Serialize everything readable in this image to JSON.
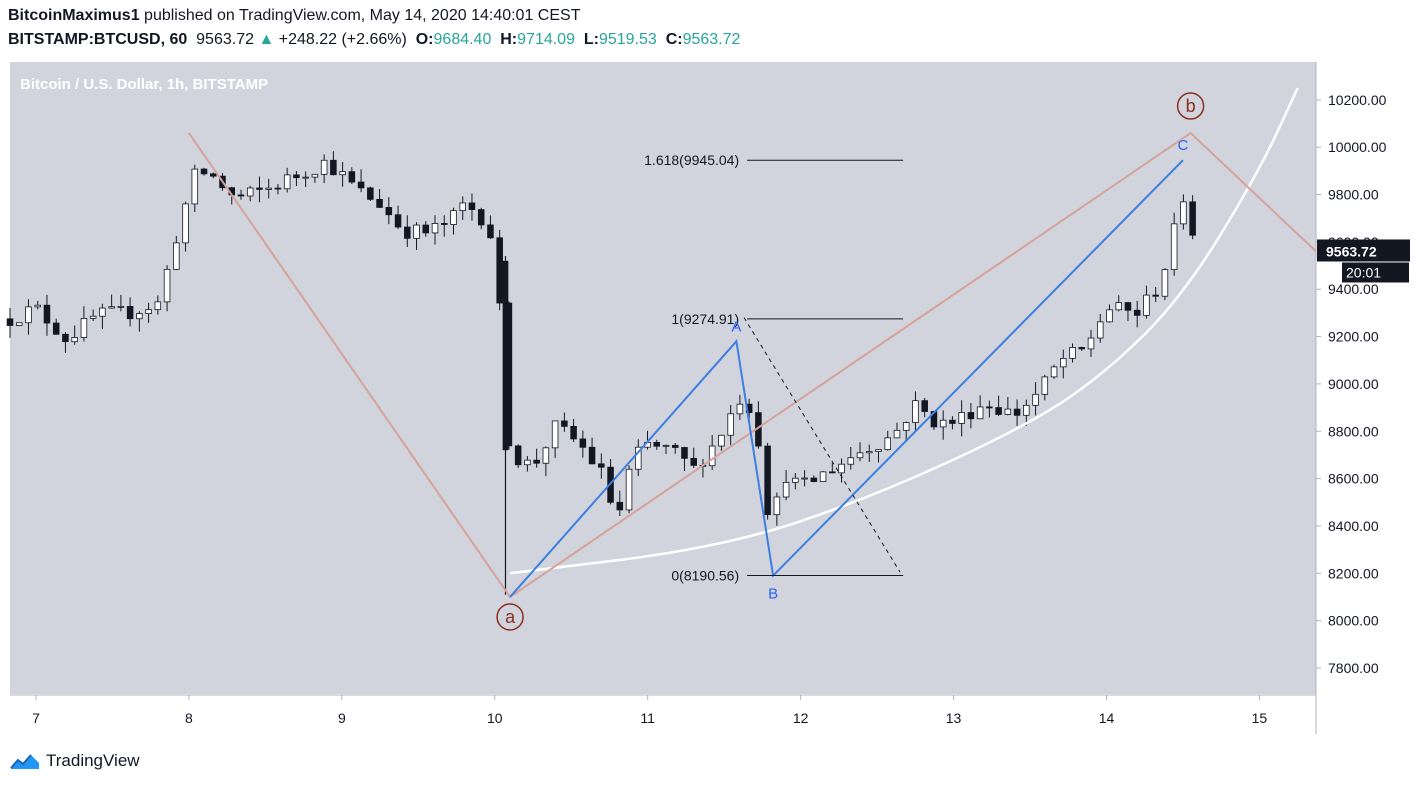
{
  "header": {
    "author": "BitcoinMaximus1",
    "published_text": "published on TradingView.com, May 14, 2020 14:40:01 CEST",
    "symbol": "BITSTAMP:BTCUSD, 60",
    "last": "9563.72",
    "change_arrow": "▲",
    "change": "+248.22 (+2.66%)",
    "open_label": "O:",
    "open": "9684.40",
    "high_label": "H:",
    "high": "9714.09",
    "low_label": "L:",
    "low": "9519.53",
    "close_label": "C:",
    "close": "9563.72"
  },
  "footer": {
    "brand": "TradingView",
    "logo_icon": "tradingview-logo-icon"
  },
  "colors": {
    "background": "#d1d4dc",
    "wave_brown": "#d4a39a",
    "wave_blue": "#3d7fe0",
    "channel_white": "#ffffff",
    "label_red": "#8b2e1f",
    "label_blue": "#2962ff"
  },
  "chart_data": {
    "type": "candlestick",
    "title": "Bitcoin / U.S. Dollar, 1h, BITSTAMP",
    "x_unit": "days of May 2020",
    "x_ticks": [
      "7",
      "8",
      "9",
      "10",
      "11",
      "12",
      "13",
      "14",
      "15"
    ],
    "xlim": [
      6.83,
      15.37
    ],
    "y_ticks": [
      "7800.00",
      "8000.00",
      "8200.00",
      "8400.00",
      "8600.00",
      "8800.00",
      "9000.00",
      "9200.00",
      "9400.00",
      "9600.00",
      "9800.00",
      "10000.00",
      "10200.00"
    ],
    "ylim": [
      7690,
      10360
    ],
    "price_label": "9563.72",
    "countdown_label": "20:01",
    "grid": false,
    "price_path": [
      [
        6.83,
        9275
      ],
      [
        7.0,
        9320
      ],
      [
        7.2,
        9190
      ],
      [
        7.4,
        9290
      ],
      [
        7.6,
        9300
      ],
      [
        7.8,
        9340
      ],
      [
        7.95,
        9700
      ],
      [
        8.05,
        9900
      ],
      [
        8.15,
        9880
      ],
      [
        8.3,
        9780
      ],
      [
        8.5,
        9820
      ],
      [
        8.7,
        9880
      ],
      [
        8.9,
        9940
      ],
      [
        9.0,
        9880
      ],
      [
        9.1,
        9820
      ],
      [
        9.25,
        9760
      ],
      [
        9.4,
        9650
      ],
      [
        9.55,
        9640
      ],
      [
        9.7,
        9680
      ],
      [
        9.8,
        9760
      ],
      [
        9.9,
        9720
      ],
      [
        10.0,
        9600
      ],
      [
        10.1,
        8700
      ],
      [
        10.25,
        8650
      ],
      [
        10.4,
        8820
      ],
      [
        10.55,
        8750
      ],
      [
        10.7,
        8620
      ],
      [
        10.8,
        8420
      ],
      [
        10.9,
        8680
      ],
      [
        11.0,
        8740
      ],
      [
        11.15,
        8720
      ],
      [
        11.3,
        8640
      ],
      [
        11.45,
        8760
      ],
      [
        11.6,
        8940
      ],
      [
        11.7,
        8880
      ],
      [
        11.8,
        8400
      ],
      [
        11.9,
        8620
      ],
      [
        12.0,
        8560
      ],
      [
        12.2,
        8640
      ],
      [
        12.4,
        8720
      ],
      [
        12.6,
        8780
      ],
      [
        12.75,
        8910
      ],
      [
        12.9,
        8830
      ],
      [
        13.0,
        8840
      ],
      [
        13.2,
        8920
      ],
      [
        13.4,
        8870
      ],
      [
        13.55,
        8960
      ],
      [
        13.7,
        9100
      ],
      [
        13.85,
        9140
      ],
      [
        14.0,
        9320
      ],
      [
        14.2,
        9300
      ],
      [
        14.35,
        9420
      ],
      [
        14.45,
        9660
      ],
      [
        14.5,
        9800
      ],
      [
        14.55,
        9680
      ],
      [
        14.6,
        9563.72
      ]
    ],
    "annotations": {
      "fib_levels": [
        {
          "label": "1.618(9945.04)",
          "value": 9945.04
        },
        {
          "label": "1(9274.91)",
          "value": 9274.91
        },
        {
          "label": "0(8190.56)",
          "value": 8190.56
        }
      ],
      "wave_labels": [
        {
          "text": "a",
          "x": 10.1,
          "y": 8100,
          "style": "circled-red"
        },
        {
          "text": "b",
          "x": 14.55,
          "y": 10060,
          "style": "circled-red"
        },
        {
          "text": "A",
          "x": 11.58,
          "y": 9180,
          "style": "blue"
        },
        {
          "text": "B",
          "x": 11.82,
          "y": 8190,
          "style": "blue"
        },
        {
          "text": "C",
          "x": 14.5,
          "y": 9945,
          "style": "blue"
        }
      ],
      "wave_lines": {
        "brown_zigzag": [
          [
            8.0,
            10060
          ],
          [
            10.1,
            8100
          ],
          [
            14.55,
            10060
          ],
          [
            15.37,
            9560
          ]
        ],
        "blue_abc": [
          [
            10.1,
            8100
          ],
          [
            11.58,
            9180
          ],
          [
            11.82,
            8190
          ],
          [
            14.5,
            9945
          ]
        ]
      },
      "support_curve": [
        [
          10.1,
          8200
        ],
        [
          11.5,
          8310
        ],
        [
          12.5,
          8530
        ],
        [
          13.5,
          8830
        ],
        [
          14.0,
          9050
        ],
        [
          14.5,
          9370
        ],
        [
          15.0,
          9900
        ],
        [
          15.25,
          10250
        ]
      ],
      "fib_dashed_line": [
        [
          11.63,
          9280
        ],
        [
          12.65,
          8205
        ]
      ]
    }
  }
}
